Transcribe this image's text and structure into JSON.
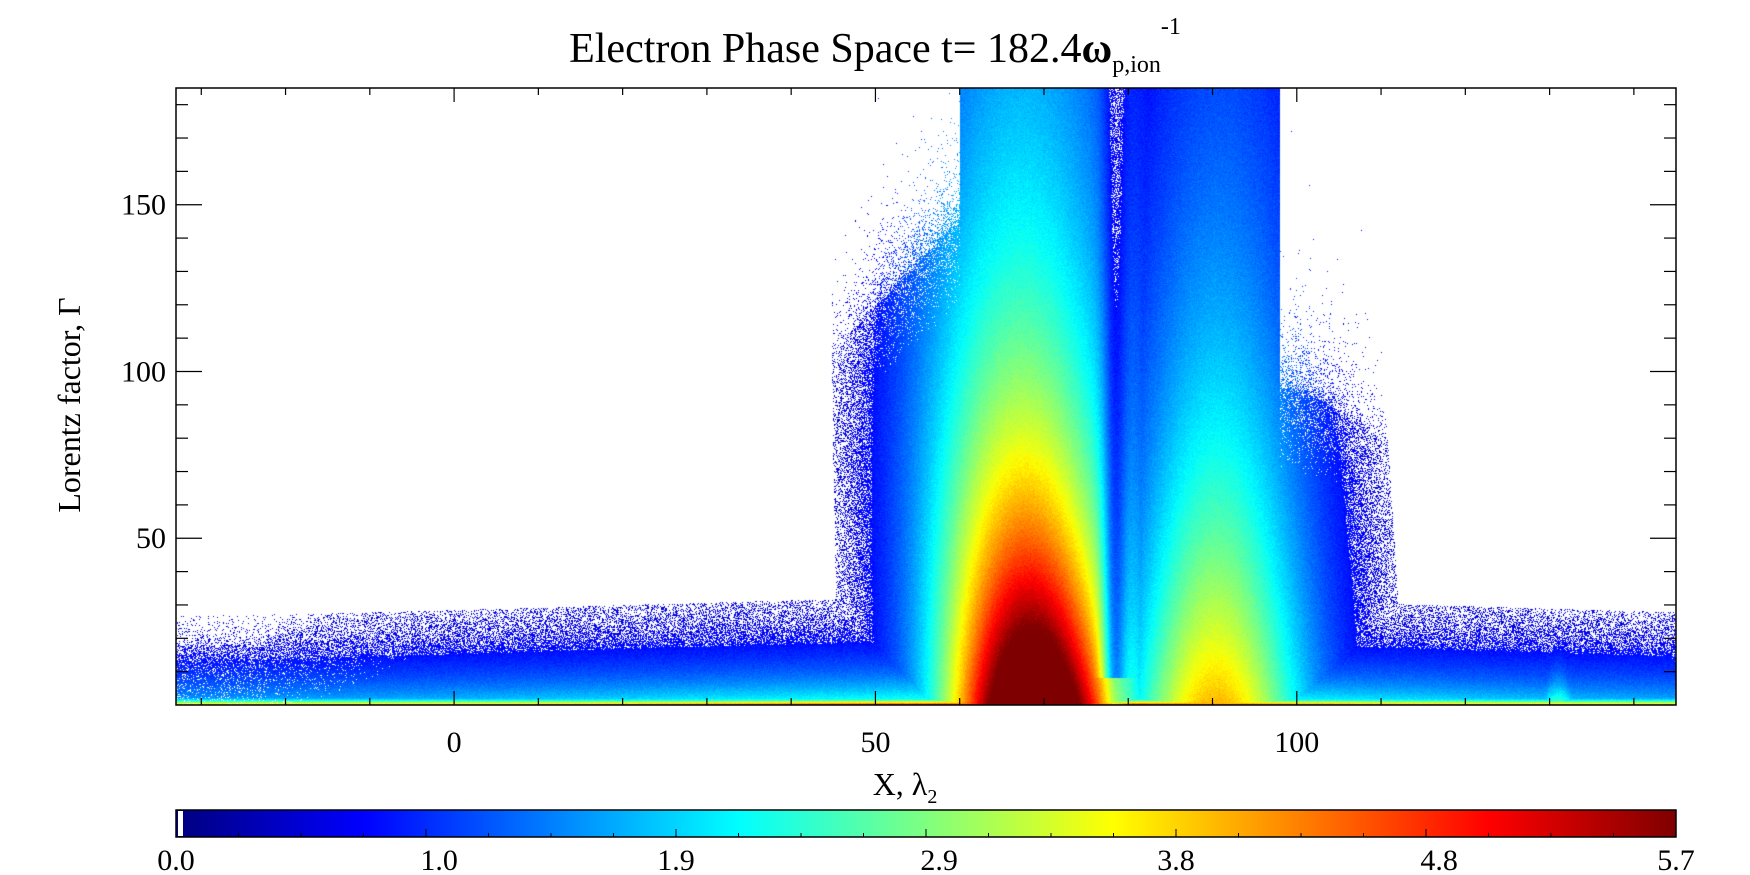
{
  "chart_data": {
    "type": "heatmap",
    "title": {
      "prefix": "Electron Phase Space t= 182.4",
      "symbol": "ω",
      "subscript": "p,ion",
      "superscript": "-1"
    },
    "xlabel": {
      "text": "X, ",
      "symbol": "λ",
      "subscript": "2"
    },
    "ylabel": "Lorentz factor, Γ",
    "xlim": [
      -33,
      145
    ],
    "ylim": [
      0,
      185
    ],
    "x_ticks": [
      "0",
      "50",
      "100"
    ],
    "x_tick_values": [
      0,
      50,
      100
    ],
    "y_ticks": [
      "50",
      "100",
      "150"
    ],
    "y_tick_values": [
      50,
      100,
      150
    ],
    "colorbar": {
      "range": [
        0.0,
        5.7
      ],
      "tick_labels": [
        "0.0",
        "1.0",
        "1.9",
        "2.9",
        "3.8",
        "4.8",
        "5.7"
      ],
      "tick_values": [
        0.0,
        1.0,
        1.9,
        2.9,
        3.8,
        4.8,
        5.7
      ],
      "colormap": "jet",
      "colors": [
        "#00007f",
        "#0000ff",
        "#007fff",
        "#00ffff",
        "#7fff7f",
        "#ffff00",
        "#ff7f00",
        "#ff0000",
        "#7f0000"
      ]
    },
    "features": [
      {
        "name": "main-central-plume",
        "x_range": [
          58,
          78
        ],
        "peak_value": 5.7,
        "extends_to_gamma": 185
      },
      {
        "name": "right-plume",
        "x_range": [
          80,
          100
        ],
        "peak_value": 3.5,
        "extends_to_gamma": 180
      },
      {
        "name": "dense-base-band",
        "gamma_range": [
          0,
          5
        ],
        "peak_value": 5.0
      },
      {
        "name": "left-diffuse-wedge",
        "x_range": [
          -33,
          55
        ],
        "max_gamma": 95
      },
      {
        "name": "right-diffuse-tail",
        "x_range": [
          100,
          145
        ],
        "max_gamma": 80
      }
    ],
    "grid": false,
    "legend": "colorbar below plot"
  }
}
